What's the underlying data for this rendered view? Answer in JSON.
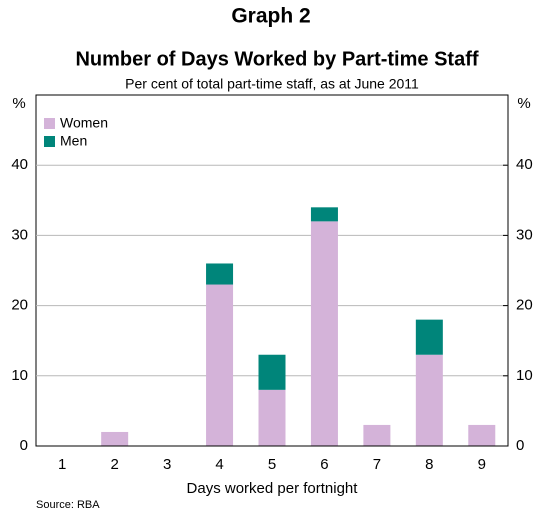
{
  "chart_data": {
    "type": "stacked_bar",
    "title": "Graph 2",
    "subtitle": "Number of Days Worked by Part-time Staff",
    "note": "Per cent of total part-time staff, as at June 2011",
    "x_label": "Days worked per fortnight",
    "y_label": "%",
    "y2_label": "%",
    "source": "Source: RBA",
    "categories": [
      "1",
      "2",
      "3",
      "4",
      "5",
      "6",
      "7",
      "8",
      "9"
    ],
    "series": [
      {
        "name": "Women",
        "color": "#d4b3d9",
        "values": [
          0,
          2,
          0,
          23,
          8,
          32,
          3,
          13,
          3
        ]
      },
      {
        "name": "Men",
        "color": "#00857a",
        "values": [
          0,
          0,
          0,
          3,
          5,
          2,
          0,
          5,
          0
        ]
      }
    ],
    "ylim": [
      0,
      50
    ],
    "yticks": [
      0,
      10,
      20,
      30,
      40
    ],
    "y2lim": [
      0,
      50
    ],
    "y2ticks": [
      0,
      10,
      20,
      30,
      40
    ],
    "grid": true,
    "legend": "top-left"
  }
}
